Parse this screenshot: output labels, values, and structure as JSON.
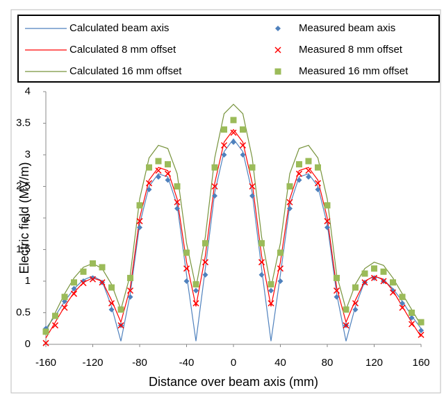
{
  "chart_data": {
    "type": "line",
    "x": [
      -160,
      -152,
      -144,
      -136,
      -128,
      -120,
      -112,
      -104,
      -96,
      -88,
      -80,
      -72,
      -64,
      -56,
      -48,
      -40,
      -32,
      -24,
      -16,
      -8,
      0,
      8,
      16,
      24,
      32,
      40,
      48,
      56,
      64,
      72,
      80,
      88,
      96,
      104,
      112,
      120,
      128,
      136,
      144,
      152,
      160
    ],
    "series": [
      {
        "name": "Calculated beam axis",
        "color": "#4f81bd",
        "kind": "line",
        "values": [
          0.25,
          0.45,
          0.68,
          0.88,
          1.02,
          1.08,
          1.0,
          0.6,
          0.05,
          0.8,
          1.9,
          2.5,
          2.7,
          2.65,
          2.2,
          1.1,
          0.05,
          1.2,
          2.4,
          3.05,
          3.25,
          3.05,
          2.4,
          1.2,
          0.05,
          1.1,
          2.2,
          2.65,
          2.7,
          2.5,
          1.9,
          0.8,
          0.05,
          0.6,
          1.0,
          1.08,
          1.02,
          0.88,
          0.68,
          0.45,
          0.25
        ]
      },
      {
        "name": "Calculated 8 mm offset",
        "color": "#ff0000",
        "kind": "line",
        "values": [
          0.1,
          0.35,
          0.6,
          0.82,
          0.98,
          1.05,
          1.0,
          0.7,
          0.35,
          0.9,
          2.0,
          2.6,
          2.8,
          2.75,
          2.3,
          1.3,
          0.6,
          1.4,
          2.55,
          3.2,
          3.4,
          3.2,
          2.55,
          1.4,
          0.6,
          1.3,
          2.3,
          2.75,
          2.8,
          2.6,
          2.0,
          0.9,
          0.35,
          0.7,
          1.0,
          1.08,
          1.03,
          0.85,
          0.6,
          0.35,
          0.12
        ]
      },
      {
        "name": "Calculated 16 mm offset",
        "color": "#77933c",
        "kind": "line",
        "values": [
          0.2,
          0.5,
          0.8,
          1.05,
          1.22,
          1.28,
          1.2,
          0.95,
          0.55,
          1.1,
          2.3,
          2.95,
          3.15,
          3.1,
          2.7,
          1.6,
          0.9,
          1.7,
          2.95,
          3.65,
          3.8,
          3.65,
          2.95,
          1.7,
          0.9,
          1.6,
          2.7,
          3.1,
          3.15,
          2.95,
          2.3,
          1.1,
          0.55,
          0.95,
          1.2,
          1.3,
          1.25,
          1.05,
          0.8,
          0.55,
          0.3
        ]
      },
      {
        "name": "Measured beam axis",
        "color": "#4f81bd",
        "kind": "diamond",
        "values": [
          0.25,
          0.45,
          0.68,
          0.88,
          1.0,
          1.05,
          0.98,
          0.55,
          0.3,
          0.75,
          1.85,
          2.45,
          2.65,
          2.6,
          2.15,
          1.0,
          0.85,
          1.1,
          2.35,
          3.0,
          3.2,
          3.0,
          2.35,
          1.1,
          0.85,
          1.0,
          2.15,
          2.6,
          2.65,
          2.45,
          1.85,
          0.75,
          0.3,
          0.55,
          0.98,
          1.05,
          1.0,
          0.85,
          0.65,
          0.42,
          0.22
        ]
      },
      {
        "name": "Measured 8 mm offset",
        "color": "#ff0000",
        "kind": "cross",
        "values": [
          0.02,
          0.3,
          0.58,
          0.8,
          0.97,
          1.03,
          0.98,
          0.65,
          0.3,
          0.85,
          1.95,
          2.55,
          2.75,
          2.7,
          2.25,
          1.2,
          0.65,
          1.3,
          2.5,
          3.15,
          3.35,
          3.15,
          2.5,
          1.3,
          0.65,
          1.2,
          2.25,
          2.7,
          2.75,
          2.55,
          1.95,
          0.85,
          0.3,
          0.65,
          0.98,
          1.05,
          1.0,
          0.82,
          0.58,
          0.32,
          0.15
        ]
      },
      {
        "name": "Measured 16 mm offset",
        "color": "#9bbb59",
        "kind": "square",
        "values": [
          0.2,
          0.45,
          0.75,
          0.98,
          1.15,
          1.28,
          1.22,
          0.9,
          0.55,
          1.05,
          2.2,
          2.8,
          2.9,
          2.85,
          2.5,
          1.45,
          0.95,
          1.6,
          2.8,
          3.4,
          3.55,
          3.4,
          2.8,
          1.6,
          0.95,
          1.45,
          2.5,
          2.85,
          2.9,
          2.8,
          2.2,
          1.05,
          0.55,
          0.9,
          1.12,
          1.2,
          1.15,
          0.98,
          0.75,
          0.5,
          0.35
        ]
      }
    ],
    "xlabel": "Distance over beam axis (mm)",
    "ylabel": "Electric field (MV/m)",
    "xlim": [
      -160,
      160
    ],
    "xticks": [
      -160,
      -120,
      -80,
      -40,
      0,
      40,
      80,
      120,
      160
    ],
    "ylim": [
      0,
      4
    ],
    "yticks": [
      0,
      0.5,
      1,
      1.5,
      2,
      2.5,
      3,
      3.5,
      4
    ],
    "grid": false,
    "legend": "top"
  }
}
